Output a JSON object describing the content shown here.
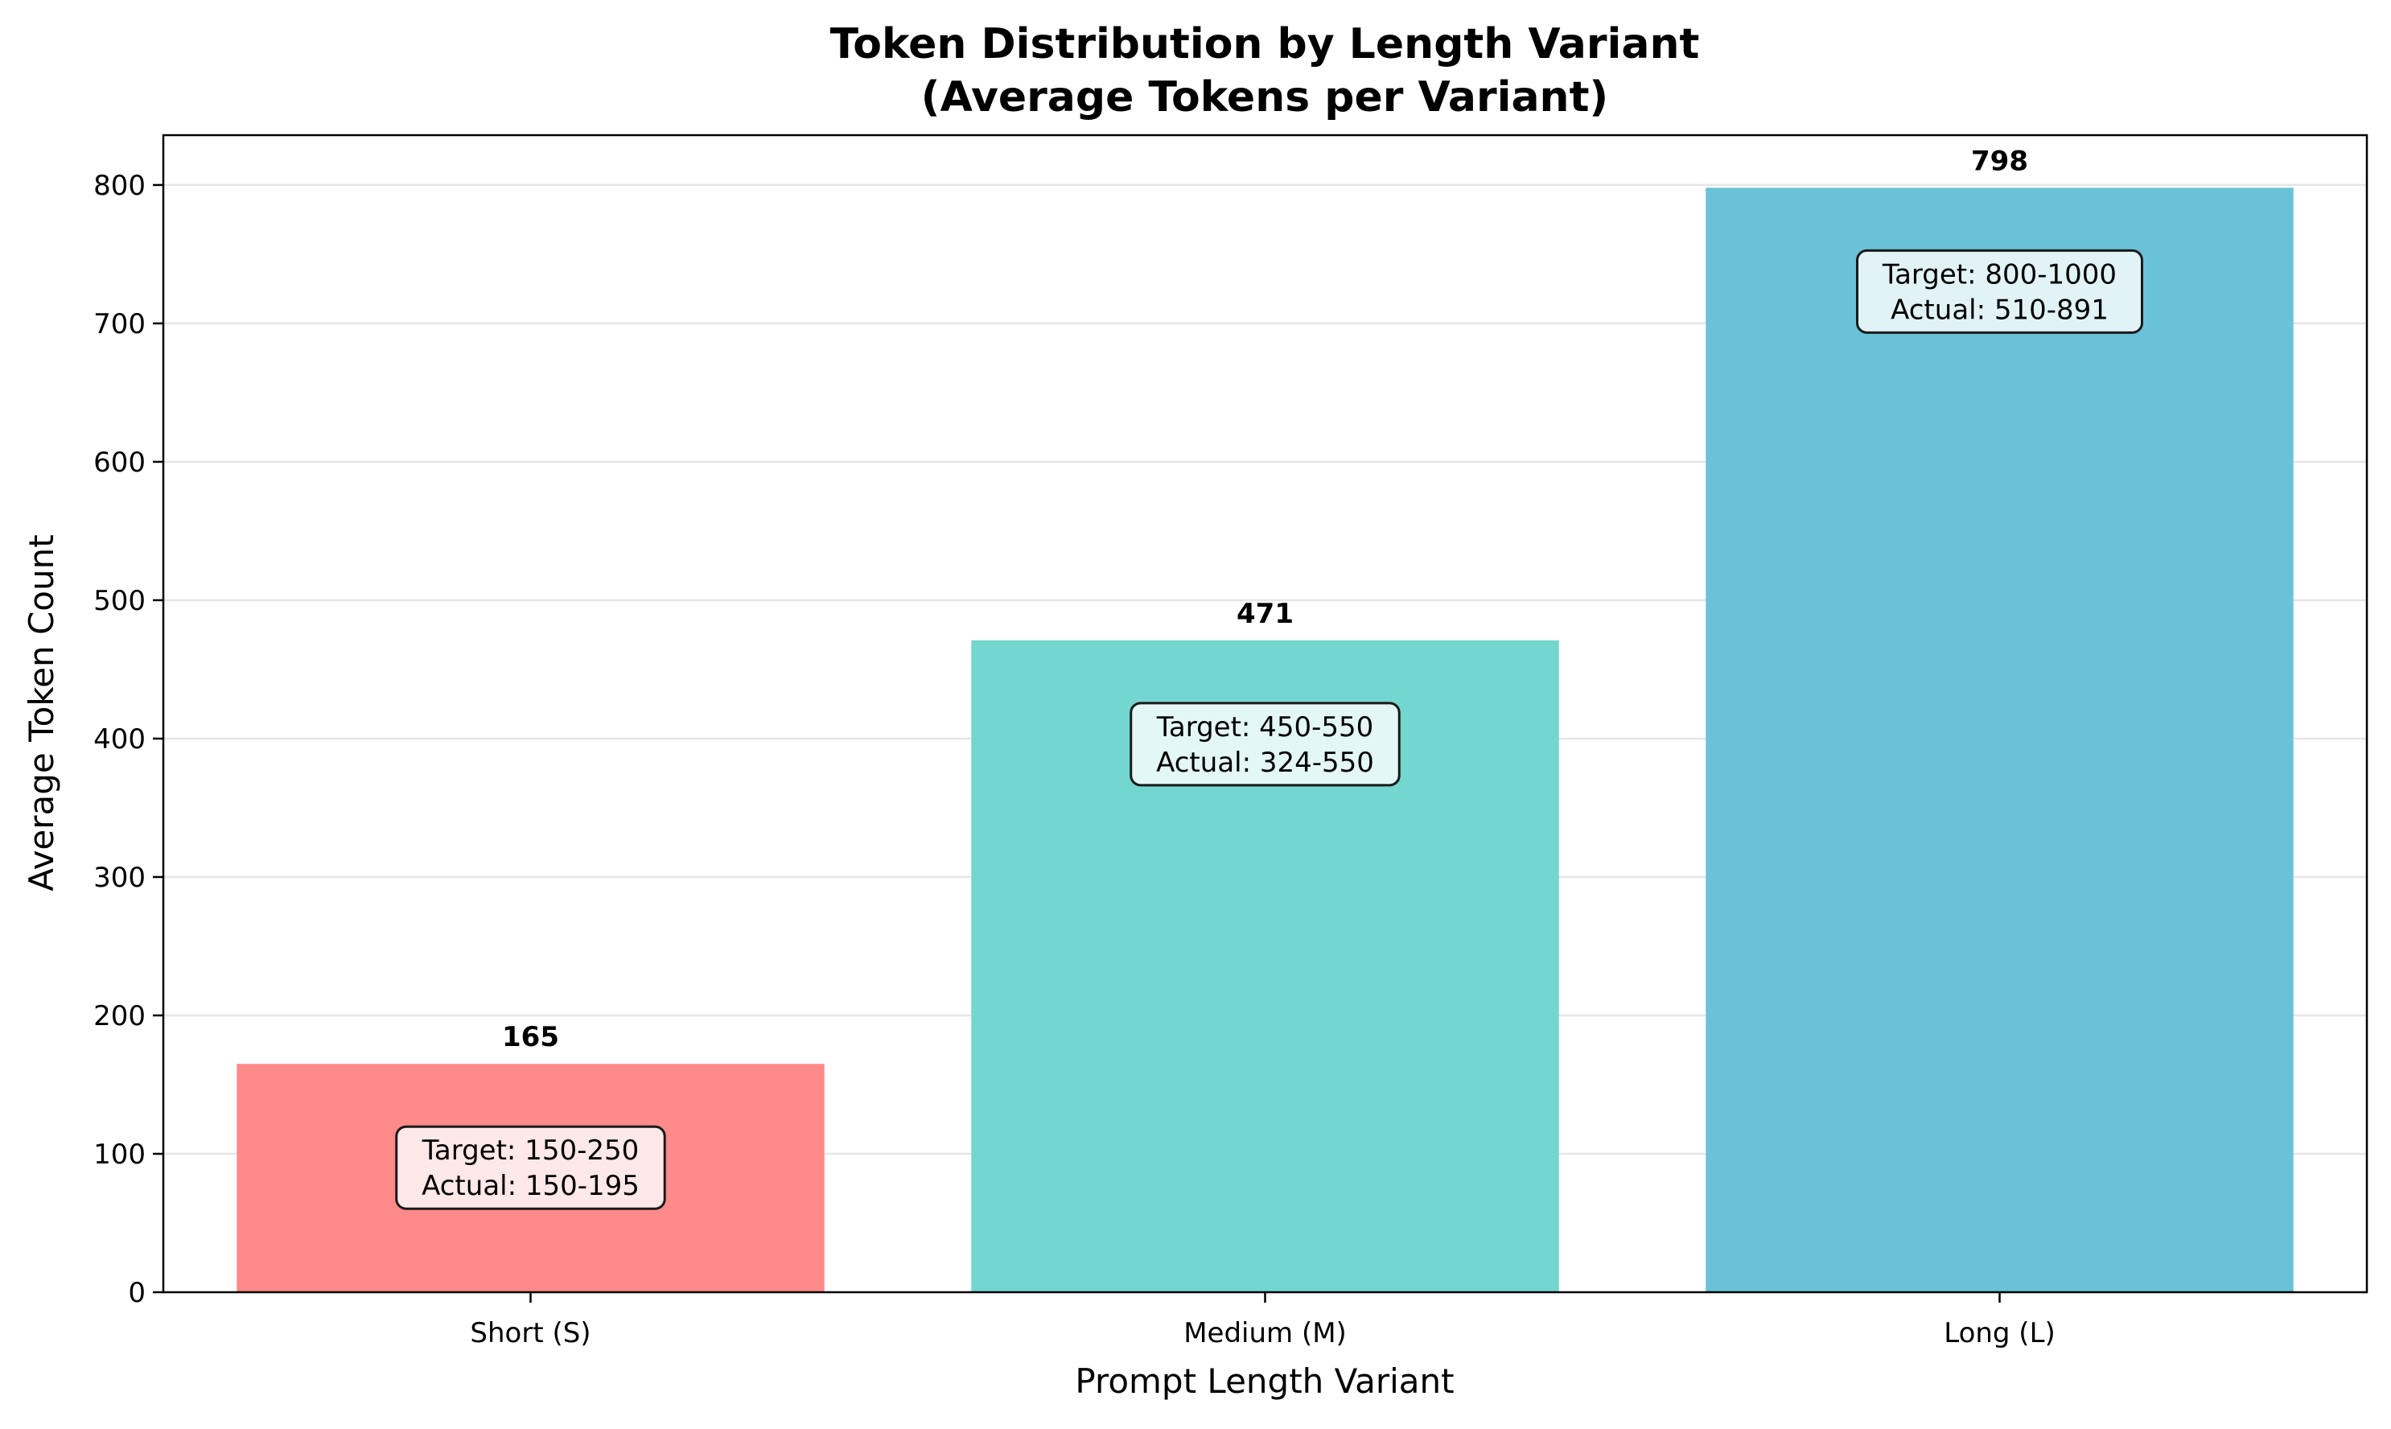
{
  "chart_data": {
    "type": "bar",
    "title": [
      "Token Distribution by Length Variant",
      "(Average Tokens per Variant)"
    ],
    "xlabel": "Prompt Length Variant",
    "ylabel": "Average Token Count",
    "categories": [
      "Short (S)",
      "Medium (M)",
      "Long (L)"
    ],
    "values": [
      165,
      471,
      798
    ],
    "value_labels": [
      "165",
      "471",
      "798"
    ],
    "colors": [
      "#ff8a8a",
      "#73d6cf",
      "#69c2d8"
    ],
    "annotations": [
      [
        "Target: 150-250",
        "Actual: 150-195"
      ],
      [
        "Target: 450-550",
        "Actual: 324-550"
      ],
      [
        "Target: 800-1000",
        "Actual: 510-891"
      ]
    ],
    "ylim": [
      0,
      836
    ],
    "yticks": [
      0,
      100,
      200,
      300,
      400,
      500,
      600,
      700,
      800
    ],
    "grid": "y"
  }
}
